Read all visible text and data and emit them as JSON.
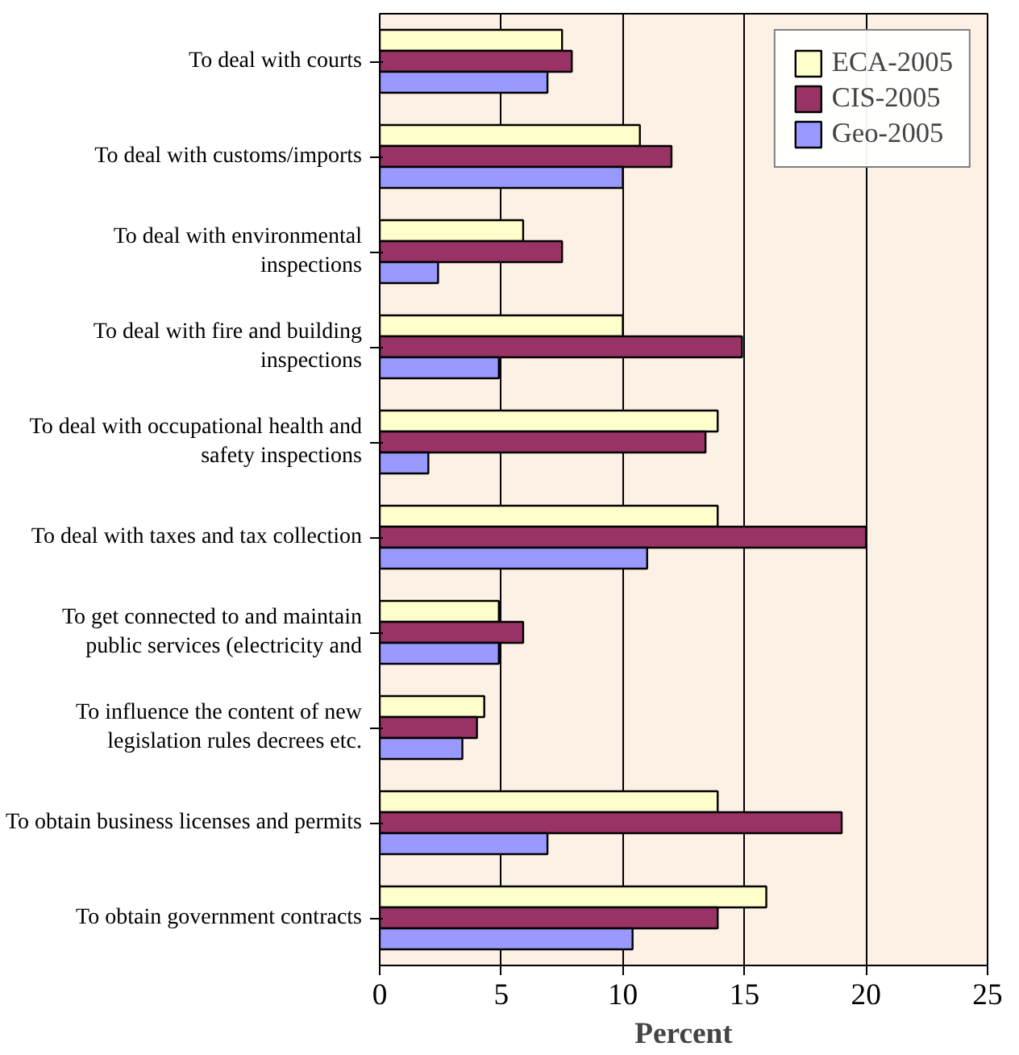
{
  "chart_data": {
    "type": "bar",
    "orientation": "horizontal",
    "xlabel": "Percent",
    "categories": [
      "To deal with courts",
      "To deal with customs/imports",
      "To deal with environmental\ninspections",
      "To deal with fire and building\ninspections",
      "To deal with occupational health and\nsafety inspections",
      "To deal with taxes and tax collection",
      "To get connected to and maintain\npublic services (electricity and",
      "To influence the content of new\nlegislation rules decrees etc.",
      "To obtain business licenses and permits",
      "To obtain government contracts"
    ],
    "series": [
      {
        "name": "ECA-2005",
        "color": "#ffffcc",
        "values": [
          7.5,
          10.7,
          5.9,
          10.0,
          13.9,
          13.9,
          4.9,
          4.3,
          13.9,
          15.9
        ]
      },
      {
        "name": "CIS-2005",
        "color": "#993366",
        "values": [
          7.9,
          12.0,
          7.5,
          14.9,
          13.4,
          20.0,
          5.9,
          4.0,
          19.0,
          13.9
        ]
      },
      {
        "name": "Geo-2005",
        "color": "#9999ff",
        "values": [
          6.9,
          10.0,
          2.4,
          4.9,
          2.0,
          11.0,
          4.9,
          3.4,
          6.9,
          10.4
        ]
      }
    ],
    "xlim": [
      0,
      25
    ],
    "xticks": [
      0,
      5,
      10,
      15,
      20,
      25
    ],
    "grid": "x",
    "legend": "top right"
  }
}
